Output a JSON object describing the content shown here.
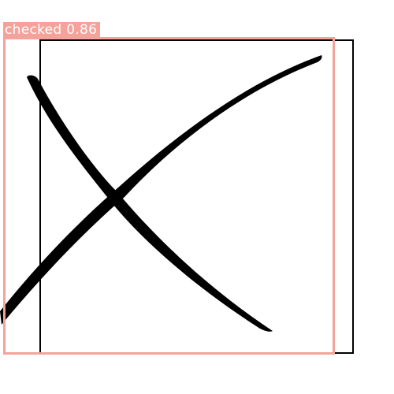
{
  "detection": {
    "label": "checked 0.86",
    "color": "#f4a29a"
  },
  "checkbox": {
    "state": "checked",
    "mark_icon": "x-mark-icon",
    "border_color": "#000000",
    "mark_color": "#000000"
  }
}
